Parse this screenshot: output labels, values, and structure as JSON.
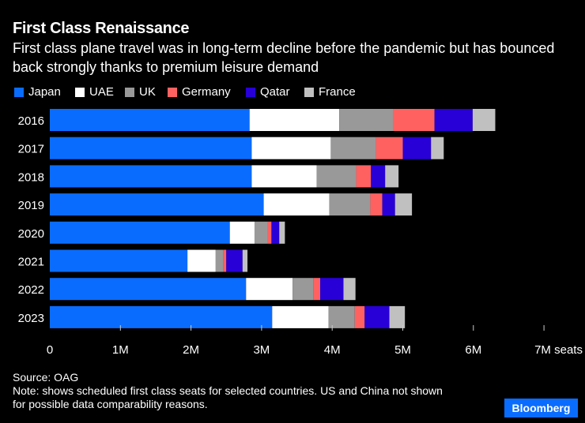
{
  "header": {
    "title": "First Class Renaissance",
    "subtitle": "First class plane travel was in long-term decline before the pandemic but has bounced back strongly thanks to premium leisure demand"
  },
  "footer": {
    "source": "Source: OAG",
    "note": "Note: shows scheduled first class seats for selected countries. US and China not shown for possible data comparability reasons."
  },
  "brand": {
    "logo_text": "Bloomberg",
    "color": "#0A6CFF"
  },
  "chart_data": {
    "type": "bar",
    "orientation": "horizontal",
    "stacked": true,
    "title": "First Class Renaissance",
    "xlabel": "seats",
    "ylabel": "",
    "xlim": [
      0,
      7000000
    ],
    "xticks": [
      0,
      1000000,
      2000000,
      3000000,
      4000000,
      5000000,
      6000000,
      7000000
    ],
    "xtick_labels": [
      "0",
      "1M",
      "2M",
      "3M",
      "4M",
      "5M",
      "6M",
      "7M seats"
    ],
    "grid": false,
    "legend_position": "top-left",
    "categories": [
      "2016",
      "2017",
      "2018",
      "2019",
      "2020",
      "2021",
      "2022",
      "2023"
    ],
    "series": [
      {
        "name": "Japan",
        "color": "#0A6CFF",
        "values": [
          2830000,
          2860000,
          2860000,
          3030000,
          2550000,
          1950000,
          2780000,
          3150000
        ]
      },
      {
        "name": "UAE",
        "color": "#FFFFFF",
        "values": [
          1270000,
          1120000,
          920000,
          930000,
          350000,
          400000,
          660000,
          800000
        ]
      },
      {
        "name": "UK",
        "color": "#999999",
        "values": [
          760000,
          640000,
          560000,
          580000,
          190000,
          110000,
          290000,
          370000
        ]
      },
      {
        "name": "Germany",
        "color": "#FF6161",
        "values": [
          590000,
          380000,
          210000,
          170000,
          50000,
          40000,
          100000,
          140000
        ]
      },
      {
        "name": "Qatar",
        "color": "#2800D7",
        "values": [
          540000,
          400000,
          200000,
          180000,
          110000,
          230000,
          330000,
          350000
        ]
      },
      {
        "name": "France",
        "color": "#C0C0C0",
        "values": [
          320000,
          180000,
          190000,
          240000,
          80000,
          70000,
          170000,
          220000
        ]
      }
    ]
  }
}
